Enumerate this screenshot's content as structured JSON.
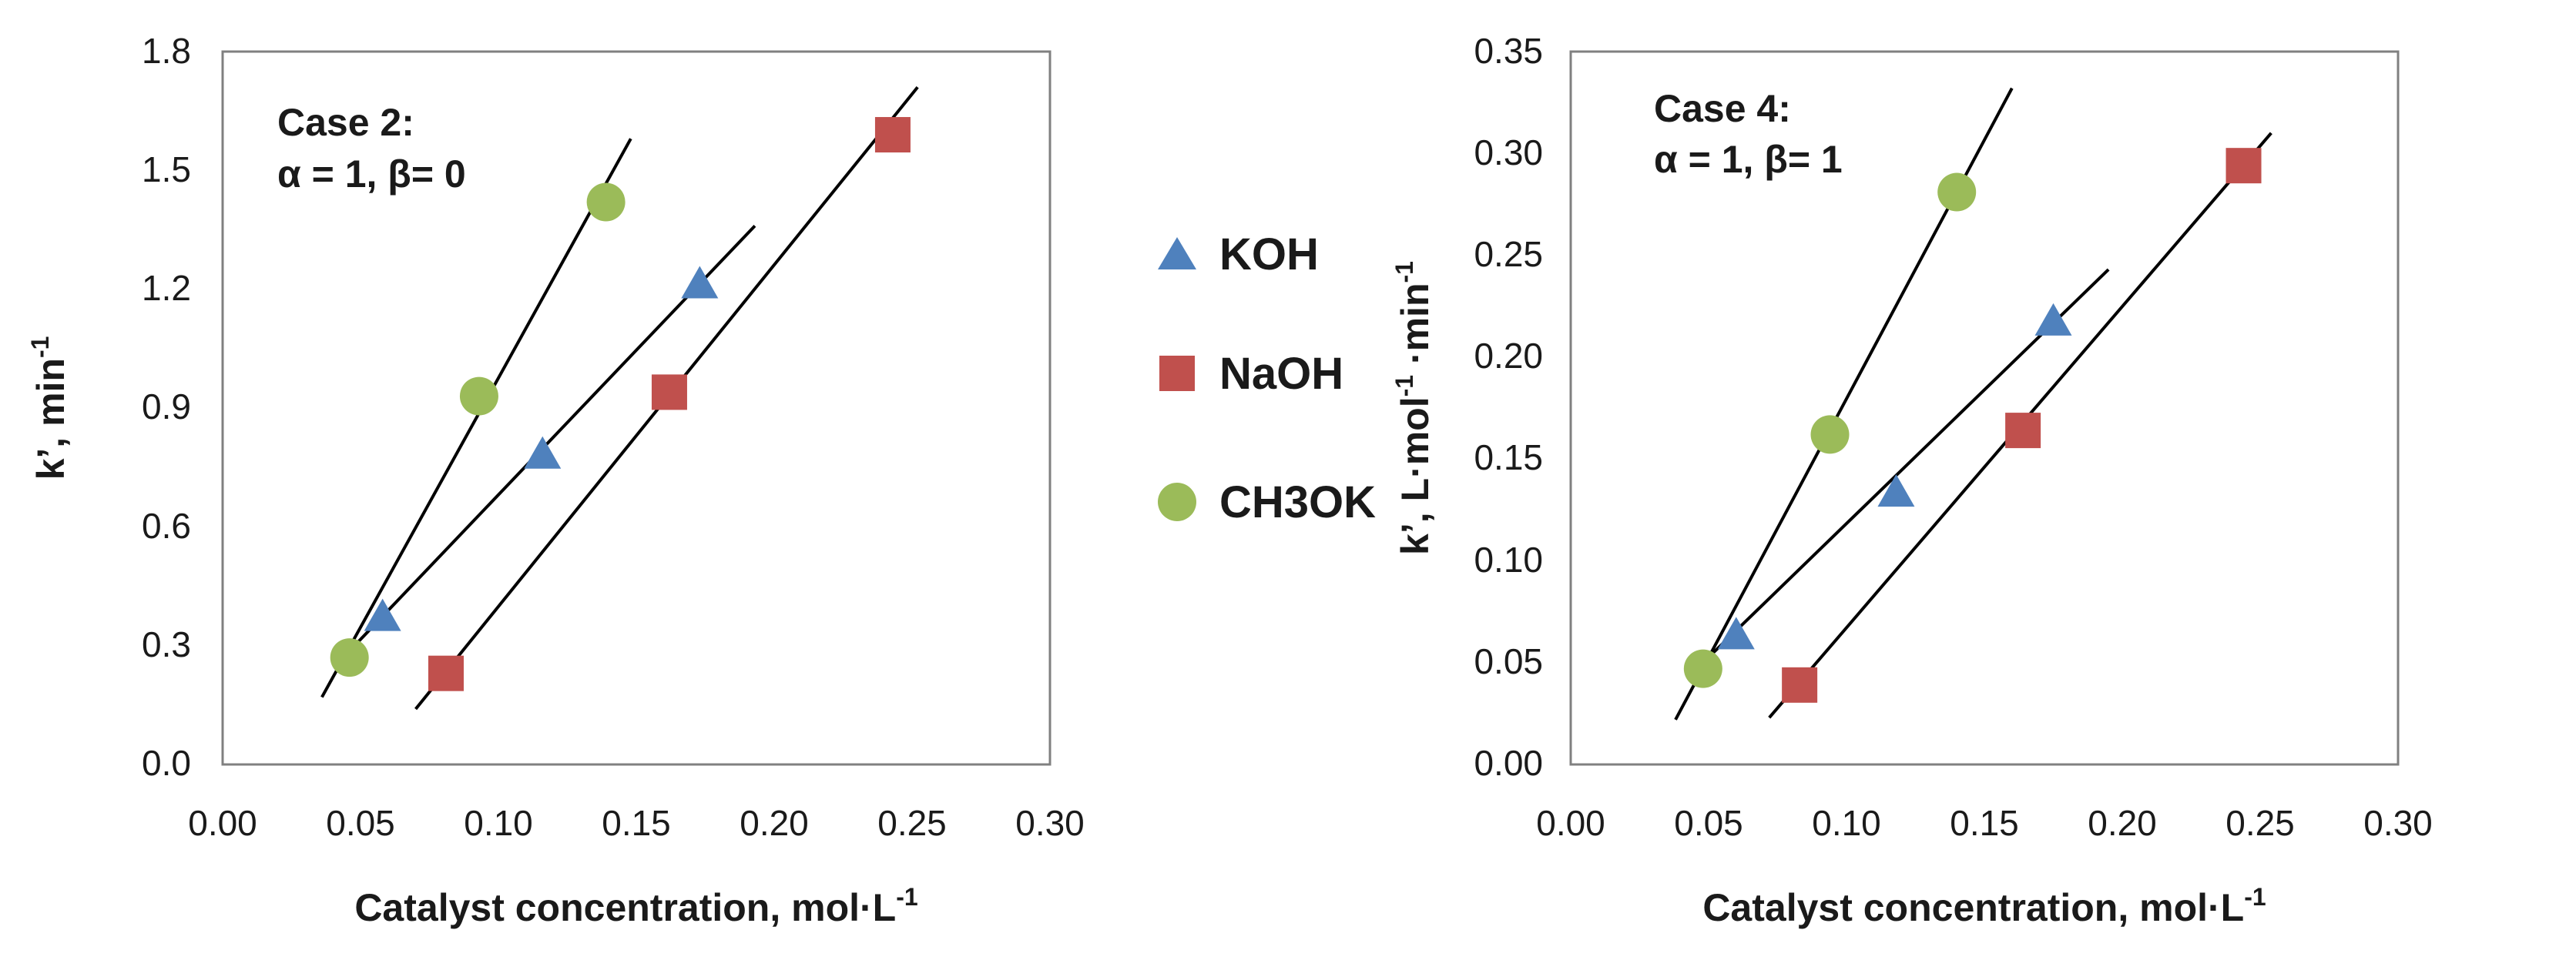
{
  "colors": {
    "KOH": "#4f81bd",
    "NaOH": "#c0504d",
    "CH3OK": "#9bbb59",
    "fit_line": "#000000",
    "axes": "#808080"
  },
  "legend": {
    "placement": "between-charts",
    "items": [
      {
        "label": "KOH",
        "marker": "triangle"
      },
      {
        "label": "NaOH",
        "marker": "square"
      },
      {
        "label": "CH3OK",
        "marker": "circle"
      }
    ]
  },
  "chart_data": [
    {
      "type": "scatter",
      "title": "",
      "annotation": {
        "line1": "Case 2:",
        "line2": "α = 1, β= 0"
      },
      "xlabel": "Catalyst concentration, mol·L",
      "xlabel_sup": "-1",
      "ylabel": "k’, min",
      "ylabel_sup": "-1",
      "xlim": [
        0,
        0.3
      ],
      "ylim": [
        0,
        1.8
      ],
      "xticks": [
        "0.00",
        "0.05",
        "0.10",
        "0.15",
        "0.20",
        "0.25",
        "0.30"
      ],
      "yticks": [
        "0.0",
        "0.3",
        "0.6",
        "0.9",
        "1.2",
        "1.5",
        "1.8"
      ],
      "grid": false,
      "series": [
        {
          "name": "KOH",
          "marker": "triangle",
          "x": [
            0.058,
            0.116,
            0.173
          ],
          "y": [
            0.37,
            0.78,
            1.21
          ],
          "fit": [
            [
              0.041,
              0.25
            ],
            [
              0.193,
              1.36
            ]
          ]
        },
        {
          "name": "NaOH",
          "marker": "square",
          "x": [
            0.081,
            0.162,
            0.243
          ],
          "y": [
            0.23,
            0.94,
            1.59
          ],
          "fit": [
            [
              0.07,
              0.14
            ],
            [
              0.252,
              1.71
            ]
          ]
        },
        {
          "name": "CH3OK",
          "marker": "circle",
          "x": [
            0.046,
            0.093,
            0.139
          ],
          "y": [
            0.27,
            0.93,
            1.42
          ],
          "fit": [
            [
              0.036,
              0.17
            ],
            [
              0.148,
              1.58
            ]
          ]
        }
      ]
    },
    {
      "type": "scatter",
      "title": "",
      "annotation": {
        "line1": "Case 4:",
        "line2": "α = 1, β= 1"
      },
      "xlabel": "Catalyst concentration, mol·L",
      "xlabel_sup": "-1",
      "ylabel": "k’, L·mol",
      "ylabel_sup": "-1",
      "ylabel_suffix": " ·min",
      "ylabel_sup2": "-1",
      "xlim": [
        0,
        0.3
      ],
      "ylim": [
        0,
        0.35
      ],
      "xticks": [
        "0.00",
        "0.05",
        "0.10",
        "0.15",
        "0.20",
        "0.25",
        "0.30"
      ],
      "yticks": [
        "0.00",
        "0.05",
        "0.10",
        "0.15",
        "0.20",
        "0.25",
        "0.30",
        "0.35"
      ],
      "grid": false,
      "series": [
        {
          "name": "KOH",
          "marker": "triangle",
          "x": [
            0.06,
            0.118,
            0.175
          ],
          "y": [
            0.063,
            0.133,
            0.217
          ],
          "fit": [
            [
              0.048,
              0.05
            ],
            [
              0.195,
              0.243
            ]
          ]
        },
        {
          "name": "NaOH",
          "marker": "square",
          "x": [
            0.083,
            0.164,
            0.244
          ],
          "y": [
            0.039,
            0.164,
            0.294
          ],
          "fit": [
            [
              0.072,
              0.023
            ],
            [
              0.254,
              0.31
            ]
          ]
        },
        {
          "name": "CH3OK",
          "marker": "circle",
          "x": [
            0.048,
            0.094,
            0.14
          ],
          "y": [
            0.047,
            0.162,
            0.281
          ],
          "fit": [
            [
              0.038,
              0.022
            ],
            [
              0.16,
              0.332
            ]
          ]
        }
      ]
    }
  ]
}
